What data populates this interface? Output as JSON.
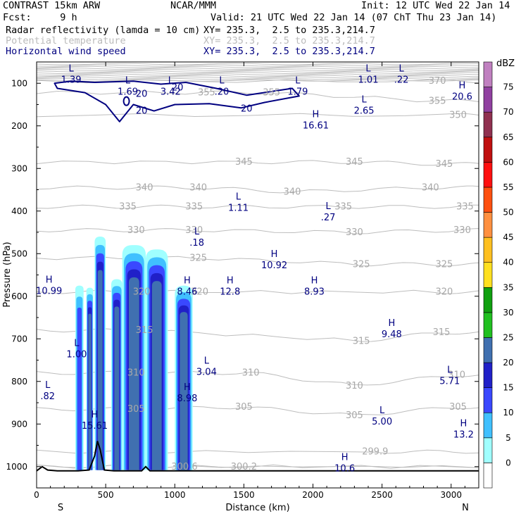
{
  "header": {
    "line1_left": "CONTRAST 15km ARW",
    "line1_mid": "NCAR/MMM",
    "line1_right": "Init: 12 UTC Wed 22 Jan 14",
    "line2_left": "Fcst:     9 h",
    "line2_right": "Valid: 21 UTC Wed 22 Jan 14 (07 ChT Thu 23 Jan 14)",
    "fields": [
      {
        "name": "Radar reflectivity (lamda = 10 cm)",
        "xy": "XY= 235.3,  2.5 to 235.3,214.7",
        "color": "#000000"
      },
      {
        "name": "Potential temperature",
        "xy": "XY= 235.3,  2.5 to 235.3,214.7",
        "color": "#bbbbbb"
      },
      {
        "name": "Horizontal wind speed",
        "xy": "XY= 235.3,  2.5 to 235.3,214.7",
        "color": "#000080"
      }
    ]
  },
  "chart_data": {
    "type": "cross-section",
    "xlabel": "Distance (km)",
    "ylabel": "Pressure (hPa)",
    "x_range": [
      0,
      3200
    ],
    "y_range": [
      1050,
      50
    ],
    "x_ticks": [
      0,
      500,
      1000,
      1500,
      2000,
      2500,
      3000
    ],
    "y_ticks": [
      100,
      200,
      300,
      400,
      500,
      600,
      700,
      800,
      900,
      1000
    ],
    "x_end_labels": {
      "left": "S",
      "right": "N"
    },
    "colorbar": {
      "unit": "dBZ",
      "levels": [
        0,
        5,
        10,
        15,
        20,
        25,
        30,
        35,
        40,
        45,
        50,
        55,
        60,
        65,
        70,
        75
      ],
      "colors": [
        "#ffffff",
        "#a0ffff",
        "#40c0ff",
        "#3a48ff",
        "#2020c8",
        "#4070b0",
        "#20c020",
        "#10a010",
        "#ffe020",
        "#ffc020",
        "#ff9040",
        "#ff5010",
        "#ff1010",
        "#c01010",
        "#903050",
        "#9040a0",
        "#c080c0"
      ]
    },
    "theta_contours": [
      {
        "value": "300.6",
        "x": 1070,
        "p": 1000
      },
      {
        "value": "300.2",
        "x": 1500,
        "p": 1000
      },
      {
        "value": "299.9",
        "x": 2450,
        "p": 965
      },
      {
        "value": "305",
        "x": 720,
        "p": 865
      },
      {
        "value": "305",
        "x": 1500,
        "p": 860
      },
      {
        "value": "305",
        "x": 2300,
        "p": 880
      },
      {
        "value": "305",
        "x": 3050,
        "p": 860
      },
      {
        "value": "310",
        "x": 720,
        "p": 780
      },
      {
        "value": "310",
        "x": 1550,
        "p": 780
      },
      {
        "value": "310",
        "x": 2300,
        "p": 810
      },
      {
        "value": "310",
        "x": 3040,
        "p": 785
      },
      {
        "value": "315",
        "x": 780,
        "p": 680
      },
      {
        "value": "315",
        "x": 2350,
        "p": 705
      },
      {
        "value": "315",
        "x": 2930,
        "p": 685
      },
      {
        "value": "320",
        "x": 760,
        "p": 590
      },
      {
        "value": "320",
        "x": 1180,
        "p": 590
      },
      {
        "value": "320",
        "x": 2950,
        "p": 590
      },
      {
        "value": "325",
        "x": 1170,
        "p": 510
      },
      {
        "value": "325",
        "x": 2350,
        "p": 525
      },
      {
        "value": "325",
        "x": 2950,
        "p": 525
      },
      {
        "value": "330",
        "x": 720,
        "p": 445
      },
      {
        "value": "330",
        "x": 1140,
        "p": 445
      },
      {
        "value": "330",
        "x": 2300,
        "p": 450
      },
      {
        "value": "330",
        "x": 3080,
        "p": 445
      },
      {
        "value": "335",
        "x": 660,
        "p": 390
      },
      {
        "value": "335",
        "x": 1140,
        "p": 390
      },
      {
        "value": "335",
        "x": 2220,
        "p": 390
      },
      {
        "value": "335",
        "x": 3100,
        "p": 390
      },
      {
        "value": "340",
        "x": 780,
        "p": 345
      },
      {
        "value": "340",
        "x": 1170,
        "p": 345
      },
      {
        "value": "340",
        "x": 1850,
        "p": 355
      },
      {
        "value": "340",
        "x": 2850,
        "p": 345
      },
      {
        "value": "345",
        "x": 1500,
        "p": 285
      },
      {
        "value": "345",
        "x": 2300,
        "p": 285
      },
      {
        "value": "345",
        "x": 2950,
        "p": 290
      },
      {
        "value": "350",
        "x": 3050,
        "p": 175
      },
      {
        "value": "355",
        "x": 1230,
        "p": 122
      },
      {
        "value": "355",
        "x": 1700,
        "p": 122
      },
      {
        "value": "355",
        "x": 2900,
        "p": 142
      },
      {
        "value": "370",
        "x": 2900,
        "p": 95
      }
    ],
    "wind_contours": [
      {
        "value": "20",
        "x": 760,
        "p": 125
      },
      {
        "value": "20",
        "x": 1020,
        "p": 110
      },
      {
        "value": "20",
        "x": 1520,
        "p": 160
      },
      {
        "value": "20",
        "x": 760,
        "p": 165
      }
    ],
    "extrema": [
      {
        "type": "L",
        "value": "1.39",
        "x": 250,
        "p": 82
      },
      {
        "type": "L",
        "value": "1.69",
        "x": 660,
        "p": 110
      },
      {
        "type": "L",
        "value": "3.42",
        "x": 970,
        "p": 110
      },
      {
        "type": "L",
        "value": ".20",
        "x": 1340,
        "p": 110
      },
      {
        "type": "L",
        "value": "1.79",
        "x": 1890,
        "p": 110
      },
      {
        "type": "L",
        "value": "1.01",
        "x": 2400,
        "p": 82
      },
      {
        "type": "L",
        "value": ".22",
        "x": 2640,
        "p": 82
      },
      {
        "type": "H",
        "value": "20.6",
        "x": 3080,
        "p": 122
      },
      {
        "type": "L",
        "value": "2.65",
        "x": 2370,
        "p": 155
      },
      {
        "type": "H",
        "value": "16.61",
        "x": 2020,
        "p": 190
      },
      {
        "type": "L",
        "value": "1.11",
        "x": 1460,
        "p": 383
      },
      {
        "type": "L",
        "value": ".27",
        "x": 2110,
        "p": 405
      },
      {
        "type": "L",
        "value": ".18",
        "x": 1160,
        "p": 465
      },
      {
        "type": "H",
        "value": "10.92",
        "x": 1720,
        "p": 518
      },
      {
        "type": "H",
        "value": "10.99",
        "x": 90,
        "p": 578
      },
      {
        "type": "H",
        "value": "8.46",
        "x": 1090,
        "p": 580
      },
      {
        "type": "H",
        "value": "12.8",
        "x": 1400,
        "p": 580
      },
      {
        "type": "H",
        "value": "8.93",
        "x": 2010,
        "p": 580
      },
      {
        "type": "H",
        "value": "9.48",
        "x": 2570,
        "p": 680
      },
      {
        "type": "L",
        "value": "1.00",
        "x": 290,
        "p": 727
      },
      {
        "type": "L",
        "value": "3.04",
        "x": 1230,
        "p": 768
      },
      {
        "type": "L",
        "value": "5.71",
        "x": 2990,
        "p": 790
      },
      {
        "type": "L",
        "value": ".82",
        "x": 80,
        "p": 825
      },
      {
        "type": "H",
        "value": "8.98",
        "x": 1090,
        "p": 830
      },
      {
        "type": "H",
        "value": "15.61",
        "x": 420,
        "p": 895
      },
      {
        "type": "L",
        "value": "5.00",
        "x": 2500,
        "p": 885
      },
      {
        "type": "H",
        "value": "13.2",
        "x": 3090,
        "p": 915
      },
      {
        "type": "H",
        "value": "10.6",
        "x": 2230,
        "p": 995
      }
    ],
    "reflectivity_cells": [
      {
        "x0": 280,
        "x1": 340,
        "top_p": 575,
        "max_dbz": 15
      },
      {
        "x0": 360,
        "x1": 410,
        "top_p": 580,
        "max_dbz": 25
      },
      {
        "x0": 420,
        "x1": 500,
        "top_p": 460,
        "max_dbz": 25
      },
      {
        "x0": 540,
        "x1": 620,
        "top_p": 560,
        "max_dbz": 25
      },
      {
        "x0": 620,
        "x1": 790,
        "top_p": 480,
        "max_dbz": 25
      },
      {
        "x0": 790,
        "x1": 950,
        "top_p": 490,
        "max_dbz": 25
      },
      {
        "x0": 1000,
        "x1": 1130,
        "top_p": 575,
        "max_dbz": 25
      }
    ],
    "terrain": [
      [
        0,
        1010
      ],
      [
        40,
        1000
      ],
      [
        80,
        1008
      ],
      [
        150,
        1010
      ],
      [
        300,
        1010
      ],
      [
        380,
        1008
      ],
      [
        420,
        975
      ],
      [
        440,
        940
      ],
      [
        460,
        960
      ],
      [
        490,
        1008
      ],
      [
        560,
        1010
      ],
      [
        760,
        1010
      ],
      [
        790,
        1000
      ],
      [
        820,
        1010
      ],
      [
        3200,
        1010
      ]
    ]
  }
}
